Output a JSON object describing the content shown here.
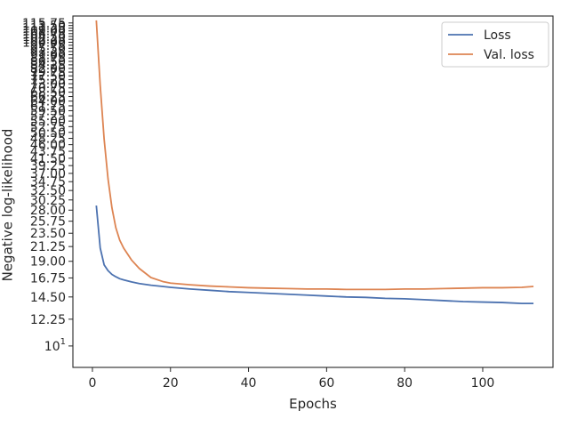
{
  "chart_data": {
    "type": "line",
    "title": "",
    "xlabel": "Epochs",
    "ylabel": "Negative log-likelihood",
    "y_scale": "log",
    "xlim": [
      -5,
      118
    ],
    "ylim": [
      8.5,
      122
    ],
    "grid": false,
    "legend_position": "top-right",
    "x_ticks": [
      0,
      20,
      40,
      60,
      80,
      100
    ],
    "y_ticks": [
      {
        "value": 10,
        "label": "10",
        "exp": "1"
      },
      {
        "value": 12.25,
        "label": "12.25"
      },
      {
        "value": 14.5,
        "label": "14.50"
      },
      {
        "value": 16.75,
        "label": "16.75"
      },
      {
        "value": 19.0,
        "label": "19.00"
      },
      {
        "value": 21.25,
        "label": "21.25"
      },
      {
        "value": 23.5,
        "label": "23.50"
      },
      {
        "value": 25.75,
        "label": "25.75"
      },
      {
        "value": 28.0,
        "label": "28.00"
      },
      {
        "value": 30.25,
        "label": "30.25"
      },
      {
        "value": 32.5,
        "label": "32.50"
      },
      {
        "value": 34.75,
        "label": "34.75"
      },
      {
        "value": 37.0,
        "label": "37.00"
      },
      {
        "value": 39.25,
        "label": "39.25"
      },
      {
        "value": 41.5,
        "label": "41.50"
      },
      {
        "value": 43.75,
        "label": "43.75"
      },
      {
        "value": 46.0,
        "label": "46.00"
      },
      {
        "value": 48.25,
        "label": "48.25"
      },
      {
        "value": 50.5,
        "label": "50.50"
      },
      {
        "value": 52.75,
        "label": "52.75"
      },
      {
        "value": 55.0,
        "label": "55.00"
      },
      {
        "value": 57.25,
        "label": "57.25"
      },
      {
        "value": 59.5,
        "label": "59.50"
      },
      {
        "value": 61.75,
        "label": "61.75"
      },
      {
        "value": 64.0,
        "label": "64.00"
      },
      {
        "value": 66.25,
        "label": "66.25"
      },
      {
        "value": 68.5,
        "label": "68.50"
      },
      {
        "value": 70.75,
        "label": "70.75"
      },
      {
        "value": 73.0,
        "label": "73.00"
      },
      {
        "value": 75.25,
        "label": "75.25"
      },
      {
        "value": 77.5,
        "label": "77.50"
      },
      {
        "value": 79.75,
        "label": "79.75"
      },
      {
        "value": 82.0,
        "label": "82.00"
      },
      {
        "value": 84.25,
        "label": "84.25"
      },
      {
        "value": 86.5,
        "label": "86.50"
      },
      {
        "value": 88.75,
        "label": "88.75"
      },
      {
        "value": 91.0,
        "label": "91.00"
      },
      {
        "value": 93.25,
        "label": "93.25"
      },
      {
        "value": 95.5,
        "label": "95.50"
      },
      {
        "value": 97.75,
        "label": "97.75"
      },
      {
        "value": 100.0,
        "label": "100.00"
      },
      {
        "value": 102.25,
        "label": "102.25"
      },
      {
        "value": 104.5,
        "label": "104.50"
      },
      {
        "value": 106.75,
        "label": "106.75"
      },
      {
        "value": 109.0,
        "label": "109.00"
      },
      {
        "value": 111.25,
        "label": "111.25"
      },
      {
        "value": 113.5,
        "label": "113.50"
      },
      {
        "value": 115.75,
        "label": "115.75"
      }
    ],
    "series": [
      {
        "name": "Loss",
        "color": "#4c72b0",
        "x": [
          1,
          2,
          3,
          4,
          5,
          6,
          7,
          8,
          10,
          12,
          15,
          18,
          20,
          25,
          30,
          35,
          40,
          45,
          50,
          55,
          60,
          65,
          70,
          75,
          80,
          85,
          90,
          95,
          100,
          105,
          110,
          113
        ],
        "y": [
          29.0,
          21.0,
          18.5,
          17.7,
          17.2,
          16.9,
          16.65,
          16.5,
          16.25,
          16.05,
          15.85,
          15.7,
          15.6,
          15.4,
          15.25,
          15.1,
          15.0,
          14.9,
          14.8,
          14.7,
          14.6,
          14.5,
          14.45,
          14.35,
          14.3,
          14.2,
          14.1,
          14.0,
          13.95,
          13.9,
          13.8,
          13.8
        ]
      },
      {
        "name": "Val. loss",
        "color": "#dd8452",
        "x": [
          1,
          2,
          3,
          4,
          5,
          6,
          7,
          8,
          10,
          12,
          15,
          18,
          20,
          25,
          30,
          35,
          40,
          45,
          50,
          55,
          60,
          65,
          70,
          75,
          80,
          85,
          90,
          95,
          100,
          105,
          110,
          113
        ],
        "y": [
          118.0,
          72.0,
          48.0,
          35.5,
          28.5,
          24.5,
          22.3,
          21.0,
          19.2,
          18.0,
          16.8,
          16.3,
          16.1,
          15.9,
          15.75,
          15.65,
          15.55,
          15.5,
          15.45,
          15.4,
          15.4,
          15.35,
          15.35,
          15.35,
          15.4,
          15.4,
          15.45,
          15.5,
          15.55,
          15.55,
          15.6,
          15.7
        ]
      }
    ]
  }
}
